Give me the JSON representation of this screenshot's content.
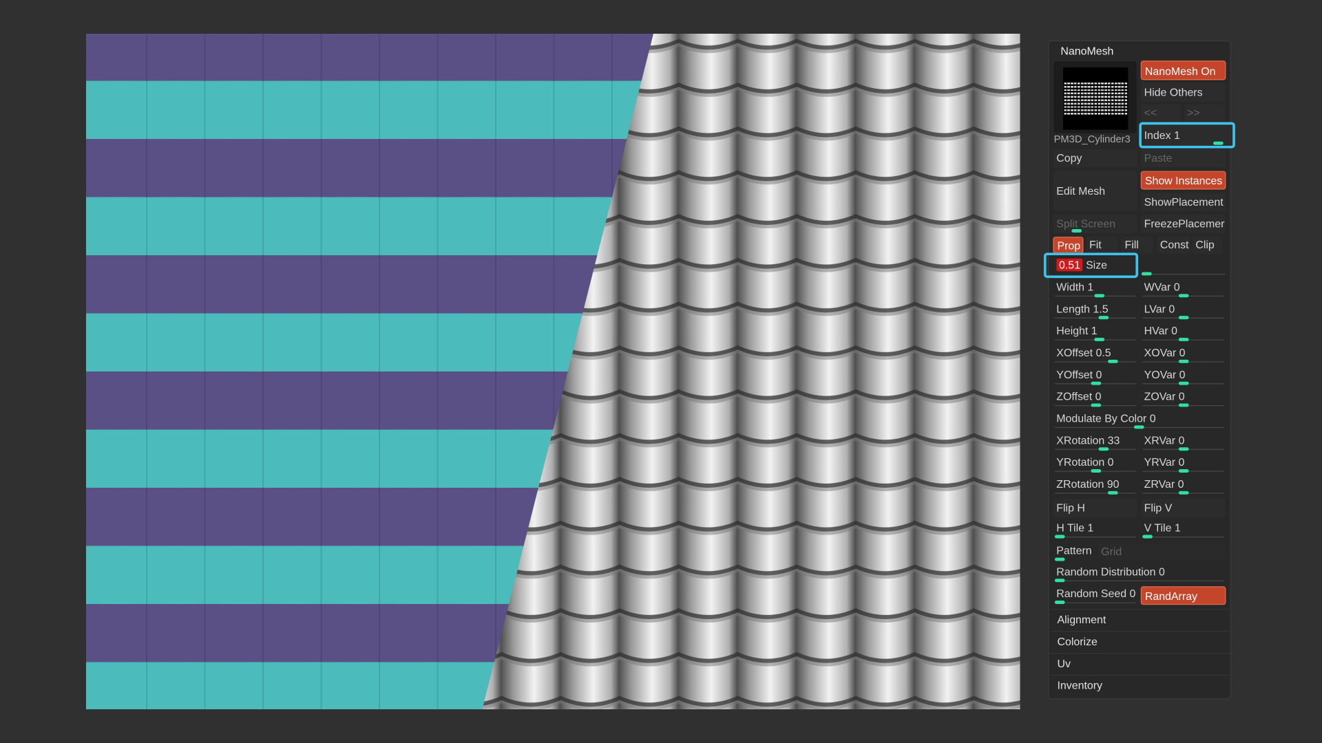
{
  "panel": {
    "title": "NanoMesh",
    "thumbnail_label": "PM3D_Cylinder3",
    "buttons": {
      "nanomesh_on": "NanoMesh On",
      "hide_others": "Hide Others",
      "previous": "<<",
      "next": ">>",
      "copy": "Copy",
      "paste": "Paste",
      "edit_mesh": "Edit Mesh",
      "show_instances": "Show Instances",
      "show_placement": "ShowPlacement",
      "freeze_placement": "FreezePlacemer",
      "split_screen": "Split Screen",
      "prop": "Prop",
      "fit": "Fit",
      "fill": "Fill",
      "const": "Const",
      "clip": "Clip",
      "flip_h": "Flip H",
      "flip_v": "Flip V",
      "rand_array": "RandArray"
    },
    "index": {
      "label": "Index",
      "value": 1
    },
    "size": {
      "value": 0.51,
      "label": "Size"
    },
    "sliders": {
      "width": {
        "label": "Width",
        "value": 1
      },
      "wvar": {
        "label": "WVar",
        "value": 0
      },
      "length": {
        "label": "Length",
        "value": 1.5
      },
      "lvar": {
        "label": "LVar",
        "value": 0
      },
      "height": {
        "label": "Height",
        "value": 1
      },
      "hvar": {
        "label": "HVar",
        "value": 0
      },
      "xoffset": {
        "label": "XOffset",
        "value": 0.5
      },
      "xovar": {
        "label": "XOVar",
        "value": 0
      },
      "yoffset": {
        "label": "YOffset",
        "value": 0
      },
      "yovar": {
        "label": "YOVar",
        "value": 0
      },
      "zoffset": {
        "label": "ZOffset",
        "value": 0
      },
      "zovar": {
        "label": "ZOVar",
        "value": 0
      },
      "modulate_by_color": {
        "label": "Modulate By Color",
        "value": 0
      },
      "xrotation": {
        "label": "XRotation",
        "value": 33
      },
      "xrvar": {
        "label": "XRVar",
        "value": 0
      },
      "yrotation": {
        "label": "YRotation",
        "value": 0
      },
      "yrvar": {
        "label": "YRVar",
        "value": 0
      },
      "zrotation": {
        "label": "ZRotation",
        "value": 90
      },
      "zrvar": {
        "label": "ZRVar",
        "value": 0
      },
      "h_tile": {
        "label": "H Tile",
        "value": 1
      },
      "v_tile": {
        "label": "V Tile",
        "value": 1
      },
      "random_distribution": {
        "label": "Random Distribution",
        "value": 0
      },
      "random_seed": {
        "label": "Random Seed",
        "value": 0
      }
    },
    "pattern": {
      "label": "Pattern",
      "value": "Grid"
    },
    "sections": [
      "Alignment",
      "Colorize",
      "Uv",
      "Inventory"
    ]
  }
}
